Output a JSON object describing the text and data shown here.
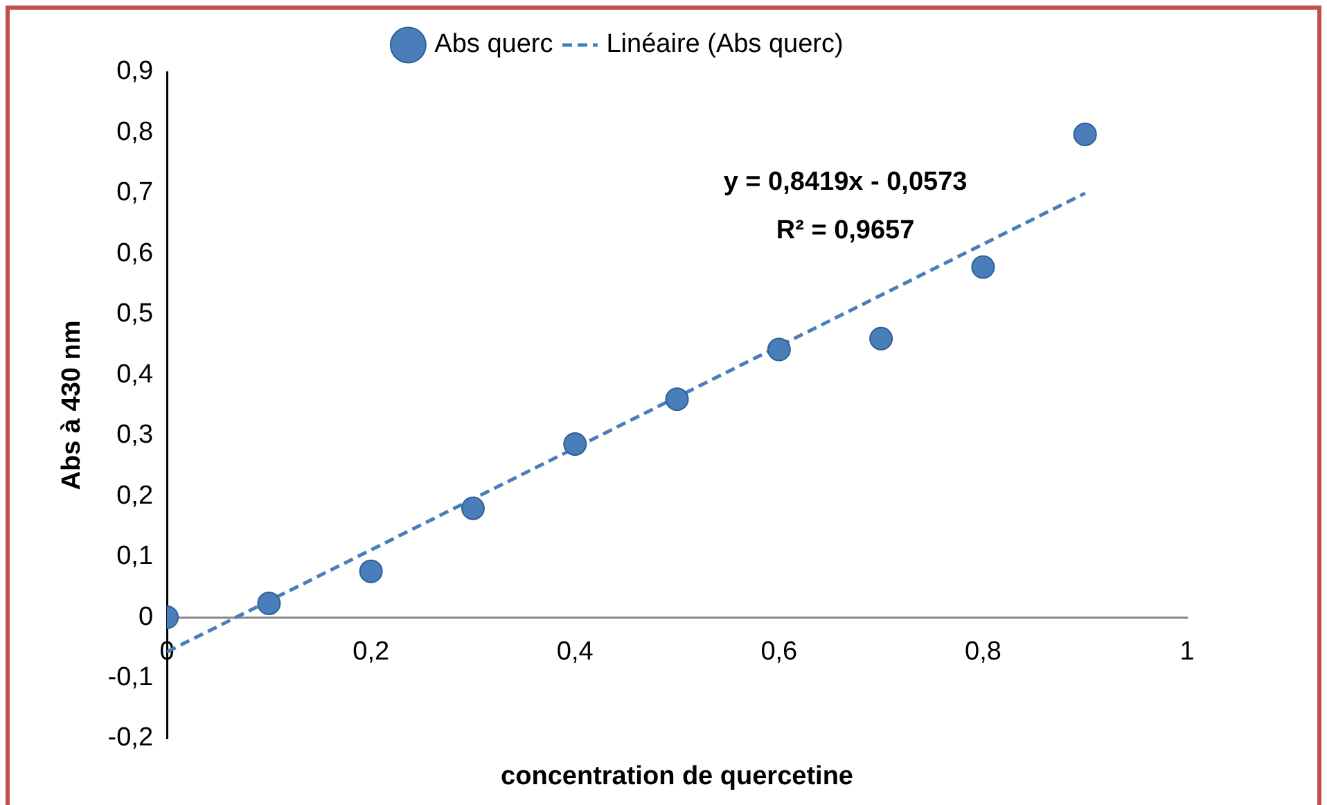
{
  "chart_data": {
    "type": "scatter",
    "xlabel": "concentration de quercetine",
    "ylabel": "Abs à 430 nm",
    "legend": "top",
    "grid": false,
    "xlim": [
      0,
      1
    ],
    "ylim": [
      -0.2,
      0.9
    ],
    "xticks": [
      {
        "value": 0,
        "label": "0"
      },
      {
        "value": 0.2,
        "label": "0,2"
      },
      {
        "value": 0.4,
        "label": "0,4"
      },
      {
        "value": 0.6,
        "label": "0,6"
      },
      {
        "value": 0.8,
        "label": "0,8"
      },
      {
        "value": 1,
        "label": "1"
      }
    ],
    "yticks": [
      {
        "value": -0.2,
        "label": "-0,2"
      },
      {
        "value": -0.1,
        "label": "-0,1"
      },
      {
        "value": 0,
        "label": "0"
      },
      {
        "value": 0.1,
        "label": "0,1"
      },
      {
        "value": 0.2,
        "label": "0,2"
      },
      {
        "value": 0.3,
        "label": "0,3"
      },
      {
        "value": 0.4,
        "label": "0,4"
      },
      {
        "value": 0.5,
        "label": "0,5"
      },
      {
        "value": 0.6,
        "label": "0,6"
      },
      {
        "value": 0.7,
        "label": "0,7"
      },
      {
        "value": 0.8,
        "label": "0,8"
      },
      {
        "value": 0.9,
        "label": "0,9"
      }
    ],
    "series": [
      {
        "name": "Abs querc",
        "marker": "circle",
        "color": "#4a7ebb",
        "x": [
          0,
          0.1,
          0.2,
          0.3,
          0.4,
          0.5,
          0.6,
          0.7,
          0.8,
          0.9
        ],
        "values": [
          0,
          0.023,
          0.076,
          0.18,
          0.286,
          0.36,
          0.442,
          0.46,
          0.578,
          0.797
        ]
      },
      {
        "name": "Linéaire (Abs querc)",
        "type": "line",
        "line_style": "dashed",
        "color": "#4a7ebb",
        "x": [
          0,
          0.9
        ],
        "values": [
          -0.057,
          0.7
        ]
      }
    ],
    "annotations": [
      "y = 0,8419x - 0,0573",
      "R² = 0,9657"
    ]
  }
}
